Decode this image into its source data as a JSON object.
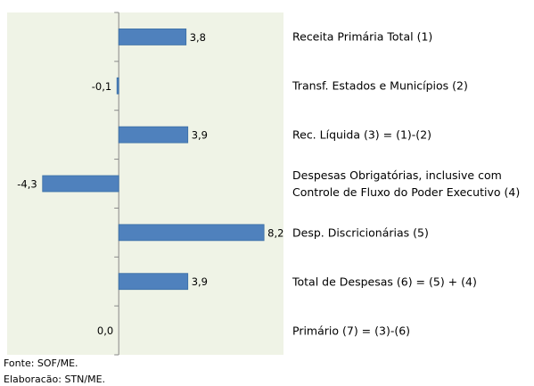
{
  "chart_data": {
    "type": "barh",
    "categories": [
      "Receita Primária Total (1)",
      "Transf. Estados e Municípios (2)",
      "Rec. Líquida (3) = (1)-(2)",
      "Despesas Obrigatórias, inclusive com\nControle de Fluxo do Poder Executivo (4)",
      "Desp. Discricionárias (5)",
      "Total de Despesas (6) = (5) + (4)",
      "Primário (7) = (3)-(6)"
    ],
    "values": [
      3.8,
      -0.1,
      3.9,
      -4.3,
      8.2,
      3.9,
      0.0
    ],
    "value_labels": [
      "3,8",
      "-0,1",
      "3,9",
      "-4,3",
      "8,2",
      "3,9",
      "0,0"
    ],
    "color": "#4f81bd",
    "xlim": [
      -6.3,
      9.3
    ],
    "notes": [
      "Fonte: SOF/ME.",
      "Elaboracão: STN/ME."
    ]
  }
}
